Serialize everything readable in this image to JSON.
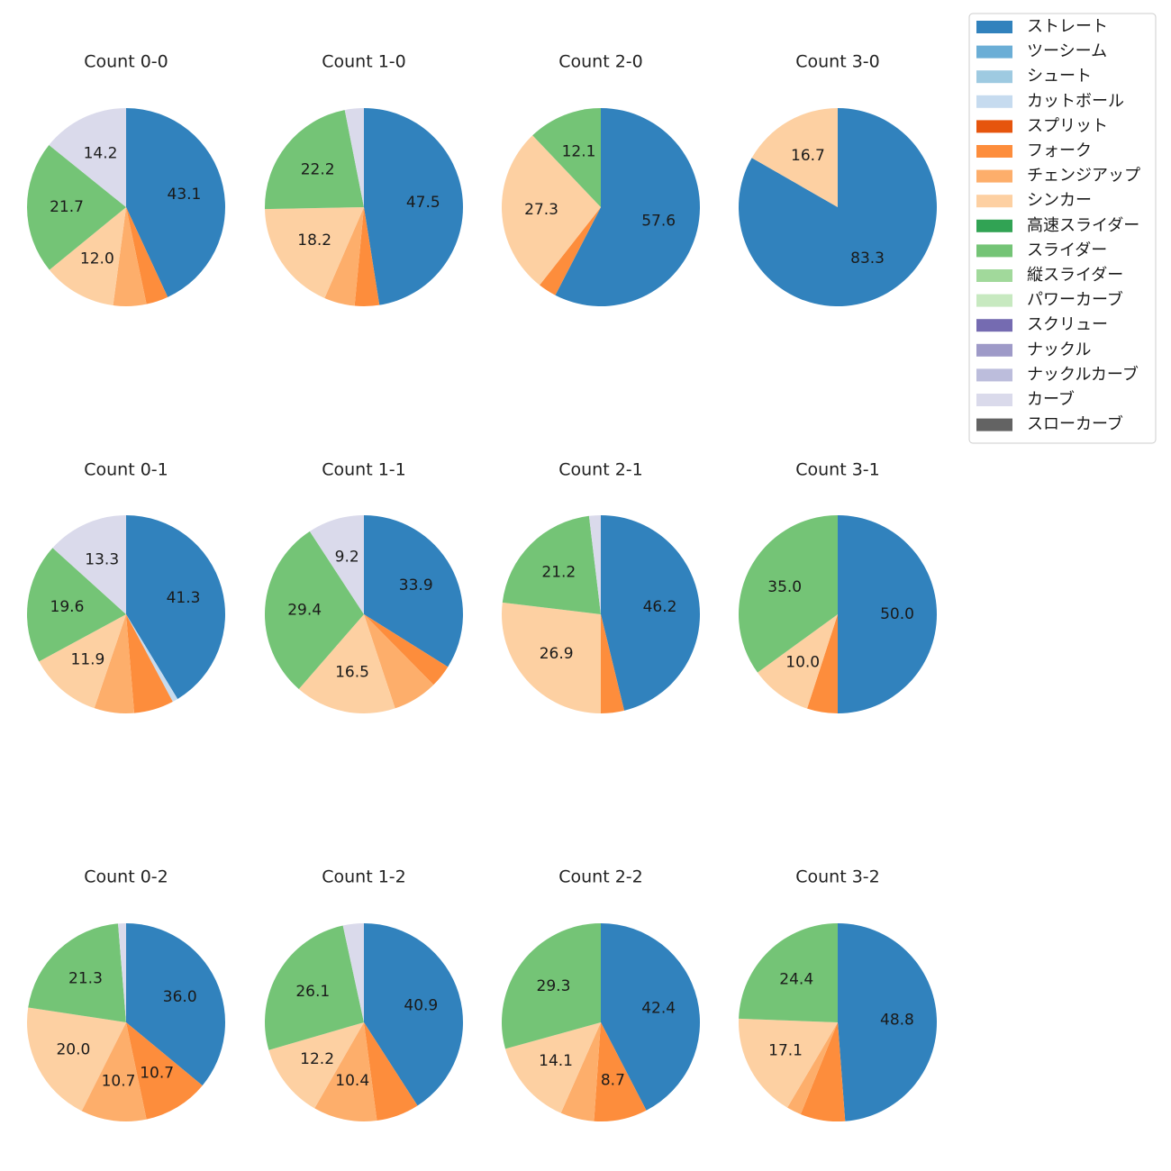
{
  "chart_data": {
    "type": "pie",
    "pitch_types": [
      {
        "name": "ストレート",
        "color": "#3182bd"
      },
      {
        "name": "ツーシーム",
        "color": "#6baed6"
      },
      {
        "name": "シュート",
        "color": "#9ecae1"
      },
      {
        "name": "カットボール",
        "color": "#c6dbef"
      },
      {
        "name": "スプリット",
        "color": "#e6550d"
      },
      {
        "name": "フォーク",
        "color": "#fd8d3c"
      },
      {
        "name": "チェンジアップ",
        "color": "#fdae6b"
      },
      {
        "name": "シンカー",
        "color": "#fdd0a2"
      },
      {
        "name": "高速スライダー",
        "color": "#31a354"
      },
      {
        "name": "スライダー",
        "color": "#74c476"
      },
      {
        "name": "縦スライダー",
        "color": "#a1d99b"
      },
      {
        "name": "パワーカーブ",
        "color": "#c7e9c0"
      },
      {
        "name": "スクリュー",
        "color": "#756bb1"
      },
      {
        "name": "ナックル",
        "color": "#9e9ac8"
      },
      {
        "name": "ナックルカーブ",
        "color": "#bcbddc"
      },
      {
        "name": "カーブ",
        "color": "#dadaeb"
      },
      {
        "name": "スローカーブ",
        "color": "#636363"
      }
    ],
    "charts": [
      {
        "title": "Count 0-0",
        "slices": [
          {
            "type": "ストレート",
            "value": 43.1,
            "label": "43.1"
          },
          {
            "type": "フォーク",
            "value": 3.6,
            "label": ""
          },
          {
            "type": "チェンジアップ",
            "value": 5.4,
            "label": ""
          },
          {
            "type": "シンカー",
            "value": 12.0,
            "label": "12.0"
          },
          {
            "type": "スライダー",
            "value": 21.7,
            "label": "21.7"
          },
          {
            "type": "カーブ",
            "value": 14.2,
            "label": "14.2"
          }
        ]
      },
      {
        "title": "Count 1-0",
        "slices": [
          {
            "type": "ストレート",
            "value": 47.5,
            "label": "47.5"
          },
          {
            "type": "フォーク",
            "value": 4.0,
            "label": ""
          },
          {
            "type": "チェンジアップ",
            "value": 5.0,
            "label": ""
          },
          {
            "type": "シンカー",
            "value": 18.2,
            "label": "18.2"
          },
          {
            "type": "スライダー",
            "value": 22.2,
            "label": "22.2"
          },
          {
            "type": "カーブ",
            "value": 3.1,
            "label": ""
          }
        ]
      },
      {
        "title": "Count 2-0",
        "slices": [
          {
            "type": "ストレート",
            "value": 57.6,
            "label": "57.6"
          },
          {
            "type": "フォーク",
            "value": 3.0,
            "label": ""
          },
          {
            "type": "シンカー",
            "value": 27.3,
            "label": "27.3"
          },
          {
            "type": "スライダー",
            "value": 12.1,
            "label": "12.1"
          }
        ]
      },
      {
        "title": "Count 3-0",
        "slices": [
          {
            "type": "ストレート",
            "value": 83.3,
            "label": "83.3"
          },
          {
            "type": "シンカー",
            "value": 16.7,
            "label": "16.7"
          }
        ]
      },
      {
        "title": "Count 0-1",
        "slices": [
          {
            "type": "ストレート",
            "value": 41.3,
            "label": "41.3"
          },
          {
            "type": "カットボール",
            "value": 0.9,
            "label": ""
          },
          {
            "type": "フォーク",
            "value": 6.5,
            "label": ""
          },
          {
            "type": "チェンジアップ",
            "value": 6.5,
            "label": ""
          },
          {
            "type": "シンカー",
            "value": 11.9,
            "label": "11.9"
          },
          {
            "type": "スライダー",
            "value": 19.6,
            "label": "19.6"
          },
          {
            "type": "カーブ",
            "value": 13.3,
            "label": "13.3"
          }
        ]
      },
      {
        "title": "Count 1-1",
        "slices": [
          {
            "type": "ストレート",
            "value": 33.9,
            "label": "33.9"
          },
          {
            "type": "フォーク",
            "value": 3.7,
            "label": ""
          },
          {
            "type": "チェンジアップ",
            "value": 7.3,
            "label": ""
          },
          {
            "type": "シンカー",
            "value": 16.5,
            "label": "16.5"
          },
          {
            "type": "スライダー",
            "value": 29.4,
            "label": "29.4"
          },
          {
            "type": "カーブ",
            "value": 9.2,
            "label": "9.2"
          }
        ]
      },
      {
        "title": "Count 2-1",
        "slices": [
          {
            "type": "ストレート",
            "value": 46.2,
            "label": "46.2"
          },
          {
            "type": "フォーク",
            "value": 3.8,
            "label": ""
          },
          {
            "type": "シンカー",
            "value": 26.9,
            "label": "26.9"
          },
          {
            "type": "スライダー",
            "value": 21.2,
            "label": "21.2"
          },
          {
            "type": "カーブ",
            "value": 1.9,
            "label": ""
          }
        ]
      },
      {
        "title": "Count 3-1",
        "slices": [
          {
            "type": "ストレート",
            "value": 50.0,
            "label": "50.0"
          },
          {
            "type": "フォーク",
            "value": 5.0,
            "label": ""
          },
          {
            "type": "シンカー",
            "value": 10.0,
            "label": "10.0"
          },
          {
            "type": "スライダー",
            "value": 35.0,
            "label": "35.0"
          }
        ]
      },
      {
        "title": "Count 0-2",
        "slices": [
          {
            "type": "ストレート",
            "value": 36.0,
            "label": "36.0"
          },
          {
            "type": "フォーク",
            "value": 10.7,
            "label": "10.7"
          },
          {
            "type": "チェンジアップ",
            "value": 10.7,
            "label": "10.7"
          },
          {
            "type": "シンカー",
            "value": 20.0,
            "label": "20.0"
          },
          {
            "type": "スライダー",
            "value": 21.3,
            "label": "21.3"
          },
          {
            "type": "カーブ",
            "value": 1.3,
            "label": ""
          }
        ]
      },
      {
        "title": "Count 1-2",
        "slices": [
          {
            "type": "ストレート",
            "value": 40.9,
            "label": "40.9"
          },
          {
            "type": "フォーク",
            "value": 7.0,
            "label": ""
          },
          {
            "type": "チェンジアップ",
            "value": 10.4,
            "label": "10.4"
          },
          {
            "type": "シンカー",
            "value": 12.2,
            "label": "12.2"
          },
          {
            "type": "スライダー",
            "value": 26.1,
            "label": "26.1"
          },
          {
            "type": "カーブ",
            "value": 3.4,
            "label": ""
          }
        ]
      },
      {
        "title": "Count 2-2",
        "slices": [
          {
            "type": "ストレート",
            "value": 42.4,
            "label": "42.4"
          },
          {
            "type": "フォーク",
            "value": 8.7,
            "label": "8.7"
          },
          {
            "type": "チェンジアップ",
            "value": 5.5,
            "label": ""
          },
          {
            "type": "シンカー",
            "value": 14.1,
            "label": "14.1"
          },
          {
            "type": "スライダー",
            "value": 29.3,
            "label": "29.3"
          }
        ]
      },
      {
        "title": "Count 3-2",
        "slices": [
          {
            "type": "ストレート",
            "value": 48.8,
            "label": "48.8"
          },
          {
            "type": "フォーク",
            "value": 7.3,
            "label": ""
          },
          {
            "type": "チェンジアップ",
            "value": 2.4,
            "label": ""
          },
          {
            "type": "シンカー",
            "value": 17.1,
            "label": "17.1"
          },
          {
            "type": "スライダー",
            "value": 24.4,
            "label": "24.4"
          }
        ]
      }
    ],
    "legend": {
      "location": "top-right"
    }
  }
}
